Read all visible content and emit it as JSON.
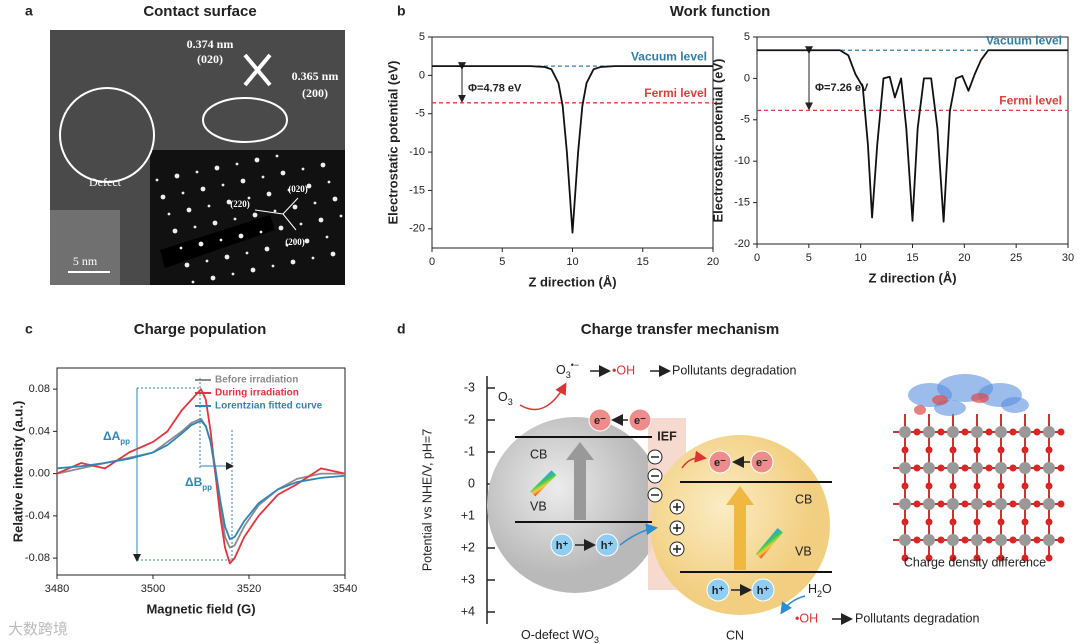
{
  "panel_a": {
    "label": "a",
    "title": "Contact surface",
    "spacing_1": "0.374 nm",
    "plane_1": "(020)",
    "spacing_2": "0.365 nm",
    "plane_2": "(200)",
    "defect": "Defect",
    "spots": [
      "(220)",
      "(020)",
      "(200)"
    ],
    "scale_bar": "5 nm"
  },
  "panel_b": {
    "label": "b",
    "title": "Work function"
  },
  "panel_c": {
    "label": "c",
    "title": "Charge population",
    "delta_a": [
      "ΔA",
      "pp"
    ],
    "delta_b": [
      "ΔB",
      "pp"
    ]
  },
  "chart_data": [
    {
      "type": "line",
      "xlabel": "Z direction (Å)",
      "ylabel": "Electrostatic potential (eV)",
      "x": [
        0,
        7,
        8,
        8.5,
        9,
        9.3,
        9.6,
        10,
        10.4,
        10.7,
        11,
        11.5,
        12,
        13,
        20
      ],
      "series": [
        {
          "color": "#111111",
          "values": [
            1.2,
            1.2,
            1.1,
            0.8,
            -1,
            -4,
            -10,
            -20.5,
            -10,
            -4,
            -1,
            0.8,
            1.1,
            1.2,
            1.2
          ]
        }
      ],
      "xlim": [
        0,
        20
      ],
      "ylim": [
        -22.5,
        5
      ],
      "xticks": [
        0,
        5,
        10,
        15,
        20
      ],
      "yticks": [
        5,
        0,
        -5,
        -10,
        -15,
        -20
      ],
      "reference_lines": [
        {
          "name": "Vacuum level",
          "value": 1.2,
          "color": "#2e7fa8"
        },
        {
          "name": "Fermi level",
          "value": -3.58,
          "color": "#e03c3c"
        }
      ],
      "work_function": "Φ=4.78 eV"
    },
    {
      "type": "line",
      "xlabel": "Z direction (Å)",
      "ylabel": "Electrostatic potential (eV)",
      "x": [
        0,
        8,
        8.8,
        9.5,
        10.2,
        10.7,
        11.1,
        11.6,
        12.2,
        12.8,
        13.3,
        13.9,
        14.4,
        15,
        15.5,
        16.1,
        16.8,
        17.4,
        18,
        18.6,
        19.2,
        19.8,
        20.4,
        21,
        21.6,
        22.3,
        30
      ],
      "series": [
        {
          "color": "#111111",
          "values": [
            3.4,
            3.4,
            2.8,
            0.5,
            -1,
            -8,
            -16.8,
            -8,
            0,
            0.2,
            -2.3,
            0,
            -6,
            -17.2,
            -6,
            0,
            0,
            -6,
            -17.3,
            -4,
            0,
            0.3,
            -1.5,
            0.5,
            2.2,
            3.4,
            3.4
          ]
        }
      ],
      "xlim": [
        0,
        30
      ],
      "ylim": [
        -20,
        5
      ],
      "xticks": [
        0,
        5,
        10,
        15,
        20,
        25,
        30
      ],
      "yticks": [
        5,
        0,
        -5,
        -10,
        -15,
        -20
      ],
      "reference_lines": [
        {
          "name": "Vacuum level",
          "value": 3.4,
          "color": "#2e7fa8"
        },
        {
          "name": "Fermi level",
          "value": -3.86,
          "color": "#e03c3c"
        }
      ],
      "work_function": "Φ=7.26 eV"
    },
    {
      "type": "line",
      "xlabel": "Magnetic field (G)",
      "ylabel": "Relative intensity (a.u.)",
      "x": [
        3480,
        3485,
        3490,
        3495,
        3500,
        3503,
        3506,
        3508,
        3510,
        3511,
        3512,
        3513,
        3514,
        3515,
        3516,
        3517,
        3519,
        3522,
        3526,
        3530,
        3535,
        3540
      ],
      "series": [
        {
          "name": "Before irradiation",
          "color": "#8c8c8c",
          "values": [
            0,
            0.005,
            0.01,
            0.015,
            0.02,
            0.03,
            0.04,
            0.048,
            0.052,
            0.045,
            0.03,
            0,
            -0.03,
            -0.06,
            -0.07,
            -0.068,
            -0.05,
            -0.03,
            -0.015,
            -0.005,
            0,
            0
          ]
        },
        {
          "name": "During irradiation",
          "color": "#e8323c",
          "values": [
            0,
            0.01,
            0.005,
            0.02,
            0.03,
            0.04,
            0.06,
            0.07,
            0.08,
            0.07,
            0.04,
            0,
            -0.04,
            -0.07,
            -0.085,
            -0.08,
            -0.06,
            -0.04,
            -0.02,
            -0.01,
            0.005,
            0
          ]
        },
        {
          "name": "Lorentzian fitted curve",
          "color": "#2e86b8",
          "values": [
            0.005,
            0.007,
            0.01,
            0.014,
            0.02,
            0.027,
            0.038,
            0.046,
            0.05,
            0.045,
            0.03,
            0.005,
            -0.025,
            -0.05,
            -0.062,
            -0.06,
            -0.045,
            -0.028,
            -0.015,
            -0.008,
            -0.004,
            -0.002
          ]
        }
      ],
      "xlim": [
        3480,
        3540
      ],
      "ylim": [
        -0.096,
        0.1
      ],
      "xticks": [
        3480,
        3500,
        3520,
        3540
      ],
      "yticks": [
        0.08,
        0.04,
        {
          "value": 0,
          "label": "0.00"
        },
        -0.04,
        -0.08
      ],
      "legend": "upper right"
    }
  ],
  "panel_d": {
    "label": "d",
    "title": "Charge transfer mechanism",
    "axis_label": "Potential vs NHE/V, pH=7",
    "axis_ticks": [
      "-3",
      "-2",
      "-1",
      "0",
      "+1",
      "+2",
      "+3",
      "+4"
    ],
    "top_reaction": {
      "species": "O",
      "sub": "3",
      "sup": "•−",
      "product": "•OH",
      "result": "Pollutants degradation"
    },
    "o3": [
      "O",
      "3"
    ],
    "ief": "IEF",
    "wo3": {
      "cb": "CB",
      "vb": "VB",
      "electron": "e⁻",
      "hole": "h⁺",
      "name": "O-defect WO",
      "name_sub": "3"
    },
    "cn": {
      "cb": "CB",
      "vb": "VB",
      "name": "CN"
    },
    "h2o": [
      "H",
      "2",
      "O"
    ],
    "bottom_reaction": {
      "product": "•OH",
      "result": "Pollutants degradation"
    },
    "charge_density_label": "Charge density difference"
  },
  "watermark": "大数跨境"
}
